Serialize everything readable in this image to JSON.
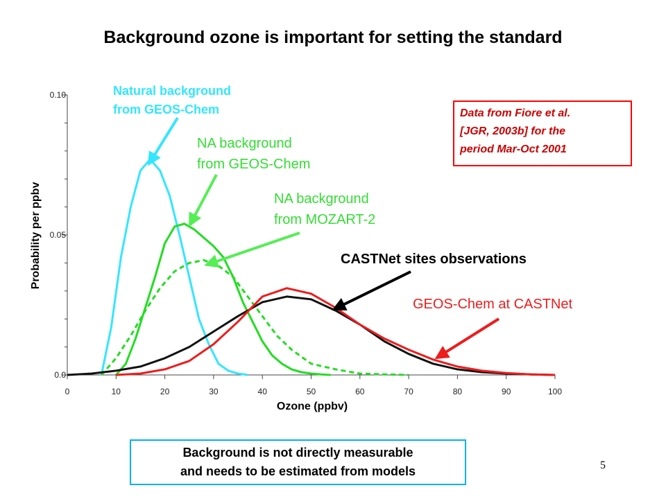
{
  "title": "Background ozone is important for setting the standard",
  "annotations": {
    "natural_bg": [
      "Natural background",
      "from GEOS-Chem"
    ],
    "na_geos": [
      "NA background",
      "from GEOS-Chem"
    ],
    "na_mozart": [
      "NA background",
      "from MOZART-2"
    ],
    "castnet_obs": "CASTNet sites observations",
    "geos_castnet": "GEOS-Chem at CASTNet"
  },
  "reference_box": [
    "Data from Fiore et al.",
    "[JGR, 2003b] for the",
    "period Mar-Oct 2001"
  ],
  "note_box": [
    "Background is not directly measurable",
    "and needs to be estimated from models"
  ],
  "page_number": "5",
  "colors": {
    "natural": "#33e6ff",
    "na_geos": "#22dd22",
    "na_mozart": "#22dd22",
    "obs": "#111111",
    "geos_castnet": "#ee1c1c",
    "note_border": "#00b0f0",
    "ref_border": "#ff0000"
  },
  "chart_data": {
    "type": "line",
    "xlabel": "Ozone (ppbv)",
    "ylabel": "Probability per ppbv",
    "xlim": [
      0,
      100
    ],
    "ylim": [
      0,
      0.1
    ],
    "xticks": [
      "0",
      "10",
      "20",
      "30",
      "40",
      "50",
      "60",
      "70",
      "80",
      "90",
      "100"
    ],
    "yticks": [
      {
        "value": 0.0,
        "label": "0.0"
      },
      {
        "value": 0.05,
        "label": "0.05"
      },
      {
        "value": 0.1,
        "label": "0.10"
      }
    ],
    "series": [
      {
        "key": "natural",
        "style": "solid",
        "x": [
          7,
          9,
          11,
          13,
          15,
          17,
          19,
          21,
          23,
          25,
          27,
          29,
          31,
          33,
          35,
          37
        ],
        "y": [
          0.0,
          0.017,
          0.042,
          0.06,
          0.073,
          0.077,
          0.073,
          0.064,
          0.05,
          0.035,
          0.02,
          0.011,
          0.004,
          0.0015,
          0.0005,
          0.0
        ]
      },
      {
        "key": "na_geos",
        "style": "solid",
        "x": [
          10,
          12,
          14,
          16,
          18,
          20,
          22,
          24,
          26,
          28,
          30,
          32,
          34,
          36,
          38,
          40,
          42,
          44,
          46,
          48,
          50,
          52,
          54
        ],
        "y": [
          0.0,
          0.004,
          0.013,
          0.024,
          0.035,
          0.047,
          0.053,
          0.054,
          0.052,
          0.049,
          0.046,
          0.042,
          0.035,
          0.026,
          0.019,
          0.012,
          0.007,
          0.004,
          0.002,
          0.001,
          0.0005,
          0.0002,
          0.0
        ]
      },
      {
        "key": "na_mozart",
        "style": "dashed",
        "x": [
          7,
          10,
          13,
          16,
          19,
          22,
          25,
          28,
          31,
          34,
          37,
          40,
          43,
          46,
          50,
          55,
          60,
          65,
          70
        ],
        "y": [
          0.0,
          0.006,
          0.014,
          0.023,
          0.031,
          0.037,
          0.04,
          0.041,
          0.039,
          0.035,
          0.028,
          0.021,
          0.014,
          0.009,
          0.004,
          0.002,
          0.0005,
          0.0002,
          0.0
        ]
      },
      {
        "key": "obs",
        "style": "solid",
        "x": [
          0,
          5,
          10,
          15,
          20,
          25,
          30,
          35,
          40,
          45,
          50,
          55,
          60,
          65,
          70,
          75,
          80,
          85,
          90,
          95,
          100
        ],
        "y": [
          0.0,
          0.0005,
          0.0015,
          0.003,
          0.006,
          0.01,
          0.0155,
          0.021,
          0.026,
          0.028,
          0.027,
          0.023,
          0.018,
          0.012,
          0.0075,
          0.004,
          0.002,
          0.001,
          0.0005,
          0.0002,
          0.0
        ]
      },
      {
        "key": "geos_castnet",
        "style": "solid",
        "x": [
          10,
          15,
          20,
          25,
          30,
          35,
          40,
          45,
          50,
          55,
          60,
          65,
          70,
          75,
          80,
          85,
          90,
          95,
          100
        ],
        "y": [
          0.0,
          0.0005,
          0.002,
          0.005,
          0.011,
          0.019,
          0.028,
          0.031,
          0.029,
          0.024,
          0.018,
          0.013,
          0.009,
          0.0055,
          0.003,
          0.0015,
          0.0007,
          0.0002,
          0.0
        ]
      }
    ]
  }
}
